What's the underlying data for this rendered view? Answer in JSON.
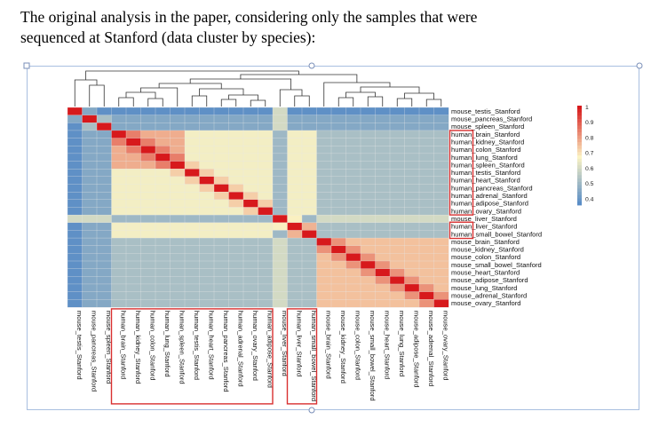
{
  "caption": {
    "line1": "The original analysis in the paper, considering only the samples that were",
    "line2": "sequenced at Stanford (data cluster by species):"
  },
  "colors": {
    "low": "#4f86c6",
    "mid": "#fbf3c4",
    "high": "#d7191c",
    "highlight_box": "#d93030",
    "frame": "#a9bfe0"
  },
  "chart_data": {
    "type": "heatmap",
    "title": "",
    "row_labels": [
      "mouse_testis_Stanford",
      "mouse_pancreas_Stanford",
      "mouse_spleen_Stanford",
      "human_brain_Stanford",
      "human_kidney_Stanford",
      "human_colon_Stanford",
      "human_lung_Stanford",
      "human_spleen_Stanford",
      "human_testis_Stanford",
      "human_heart_Stanford",
      "human_pancreas_Stanford",
      "human_adrenal_Stanford",
      "human_adipose_Stanford",
      "human_ovary_Stanford",
      "mouse_liver_Stanford",
      "human_liver_Stanford",
      "human_small_bowel_Stanford",
      "mouse_brain_Stanford",
      "mouse_kidney_Stanford",
      "mouse_colon_Stanford",
      "mouse_small_bowel_Stanford",
      "mouse_heart_Stanford",
      "mouse_adipose_Stanford",
      "mouse_lung_Stanford",
      "mouse_adrenal_Stanford",
      "mouse_ovary_Stanford"
    ],
    "col_labels": [
      "mouse_testis_Stanford",
      "mouse_pancreas_Stanford",
      "mouse_spleen_Stanford",
      "human_brain_Stanford",
      "human_kidney_Stanford",
      "human_colon_Stanford",
      "human_lung_Stanford",
      "human_spleen_Stanford",
      "human_testis_Stanford",
      "human_heart_Stanford",
      "human_pancreas_Stanford",
      "human_adrenal_Stanford",
      "human_ovary_Stanford",
      "human_adipose_Stanford",
      "mouse_liver_Stanford",
      "human_liver_Stanford",
      "human_small_bowel_Stanford",
      "mouse_brain_Stanford",
      "mouse_kidney_Stanford",
      "mouse_colon_Stanford",
      "mouse_small_bowel_Stanford",
      "mouse_heart_Stanford",
      "mouse_lung_Stanford",
      "mouse_adipose_Stanford",
      "mouse_adrenal_Stanford",
      "mouse_ovary_Stanford"
    ],
    "groups": [
      "mouse",
      "mouse",
      "mouse",
      "human",
      "human",
      "human",
      "human",
      "human",
      "human",
      "human",
      "human",
      "human",
      "human",
      "human",
      "mouse",
      "human",
      "human",
      "mouse",
      "mouse",
      "mouse",
      "mouse",
      "mouse",
      "mouse",
      "mouse",
      "mouse",
      "mouse"
    ],
    "color_scale": {
      "ticks": [
        "1",
        "0.9",
        "0.8",
        "0.7",
        "0.6",
        "0.5",
        "0.4"
      ],
      "range": [
        0.35,
        1
      ],
      "colormap": "blue-yellow-red"
    },
    "highlighted_row_blocks": [
      [
        "human_brain_Stanford",
        "human_ovary_Stanford"
      ],
      [
        "human_liver_Stanford",
        "human_small_bowel_Stanford"
      ]
    ],
    "highlighted_col_blocks": [
      [
        "human_brain_Stanford",
        "human_ovary_Stanford"
      ],
      [
        "human_liver_Stanford",
        "human_small_bowel_Stanford"
      ]
    ],
    "dendrogram": "top",
    "legend_position": "right"
  }
}
